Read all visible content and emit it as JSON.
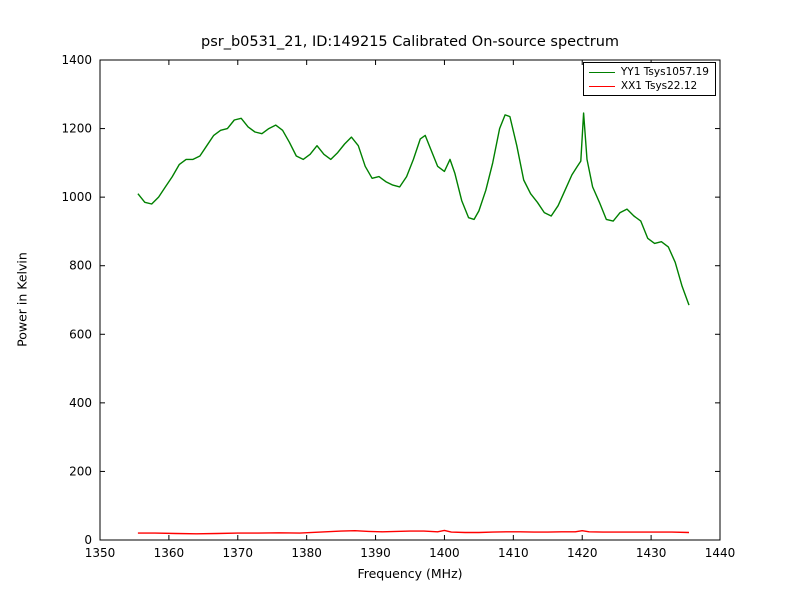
{
  "title": "psr_b0531_21, ID:149215 Calibrated On-source spectrum",
  "chart_data": {
    "type": "line",
    "title": "psr_b0531_21, ID:149215 Calibrated On-source spectrum",
    "xlabel": "Frequency (MHz)",
    "ylabel": "Power in Kelvin",
    "xlim": [
      1350,
      1440
    ],
    "ylim": [
      0,
      1400
    ],
    "x_ticks": [
      1350,
      1360,
      1370,
      1380,
      1390,
      1400,
      1410,
      1420,
      1430,
      1440
    ],
    "y_ticks": [
      0,
      200,
      400,
      600,
      800,
      1000,
      1200,
      1400
    ],
    "grid": false,
    "legend_position": "upper right",
    "series": [
      {
        "name": "YY1 Tsys1057.19",
        "color": "#008000",
        "x": [
          1355.5,
          1356.5,
          1357.5,
          1358.5,
          1359.5,
          1360.5,
          1361.5,
          1362.5,
          1363.5,
          1364.5,
          1365.5,
          1366.5,
          1367.5,
          1368.5,
          1369.5,
          1370.5,
          1371.5,
          1372.5,
          1373.5,
          1374.5,
          1375.5,
          1376.5,
          1377.5,
          1378.5,
          1379.5,
          1380.5,
          1381.5,
          1382.5,
          1383.5,
          1384.5,
          1385.5,
          1386.5,
          1387.5,
          1388.5,
          1389.5,
          1390.5,
          1391.5,
          1392.5,
          1393.5,
          1394.5,
          1395.5,
          1396.5,
          1397.2,
          1398,
          1399,
          1400,
          1400.8,
          1401.5,
          1402.5,
          1403.5,
          1404.3,
          1405,
          1406,
          1407,
          1408,
          1408.8,
          1409.5,
          1410.5,
          1411.5,
          1412.5,
          1413.5,
          1414.5,
          1415.5,
          1416.5,
          1417.5,
          1418.5,
          1419.3,
          1419.8,
          1420.2,
          1420.7,
          1421.5,
          1422.5,
          1423.5,
          1424.5,
          1425.5,
          1426.5,
          1427.5,
          1428.5,
          1429.5,
          1430.5,
          1431.5,
          1432.5,
          1433.5,
          1434.5,
          1435.5
        ],
        "values": [
          1010,
          985,
          980,
          1000,
          1030,
          1060,
          1095,
          1110,
          1110,
          1120,
          1150,
          1180,
          1195,
          1200,
          1225,
          1230,
          1205,
          1190,
          1185,
          1200,
          1210,
          1195,
          1160,
          1120,
          1110,
          1125,
          1150,
          1125,
          1110,
          1130,
          1155,
          1175,
          1150,
          1090,
          1055,
          1060,
          1045,
          1035,
          1030,
          1060,
          1110,
          1170,
          1180,
          1140,
          1090,
          1075,
          1110,
          1070,
          990,
          940,
          935,
          960,
          1020,
          1100,
          1200,
          1240,
          1235,
          1150,
          1050,
          1010,
          985,
          955,
          945,
          975,
          1020,
          1065,
          1090,
          1105,
          1245,
          1110,
          1030,
          985,
          935,
          930,
          955,
          965,
          945,
          930,
          880,
          865,
          870,
          855,
          810,
          740,
          685
        ]
      },
      {
        "name": "XX1 Tsys22.12",
        "color": "#ff0000",
        "x": [
          1355.5,
          1358,
          1361,
          1364,
          1367,
          1370,
          1373,
          1376,
          1379,
          1382,
          1385,
          1387,
          1389,
          1391,
          1393,
          1395,
          1397,
          1399,
          1400,
          1401,
          1403,
          1405,
          1407,
          1409,
          1411,
          1413,
          1415,
          1417,
          1419,
          1420,
          1421,
          1423,
          1425,
          1427,
          1429,
          1431,
          1433,
          1435.5
        ],
        "values": [
          20,
          20,
          19,
          18,
          19,
          20,
          20,
          21,
          20,
          23,
          26,
          27,
          25,
          24,
          25,
          26,
          26,
          24,
          28,
          23,
          22,
          22,
          23,
          24,
          24,
          23,
          23,
          24,
          24,
          27,
          24,
          23,
          23,
          23,
          23,
          23,
          23,
          22
        ]
      }
    ]
  }
}
